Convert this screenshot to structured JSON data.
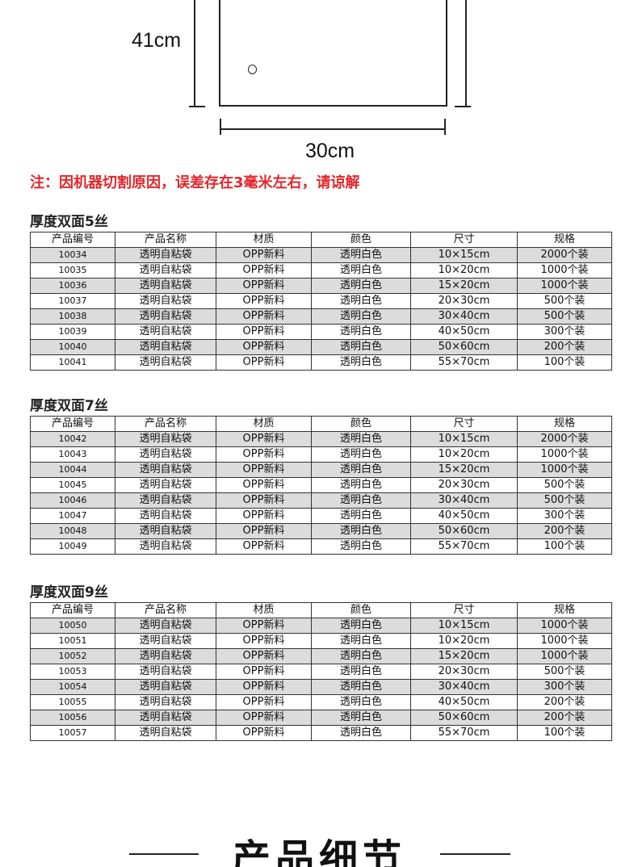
{
  "diagram": {
    "height_label": "41cm",
    "width_label": "30cm"
  },
  "note": "注：因机器切割原因，误差存在3毫米左右，请谅解",
  "columns": [
    "产品编号",
    "产品名称",
    "材质",
    "颜色",
    "尺寸",
    "规格"
  ],
  "tables": [
    {
      "title": "厚度双面5丝",
      "rows": [
        [
          "10034",
          "透明自粘袋",
          "OPP新料",
          "透明白色",
          "10×15cm",
          "2000个装"
        ],
        [
          "10035",
          "透明自粘袋",
          "OPP新料",
          "透明白色",
          "10×20cm",
          "1000个装"
        ],
        [
          "10036",
          "透明自粘袋",
          "OPP新料",
          "透明白色",
          "15×20cm",
          "1000个装"
        ],
        [
          "10037",
          "透明自粘袋",
          "OPP新料",
          "透明白色",
          "20×30cm",
          "500个装"
        ],
        [
          "10038",
          "透明自粘袋",
          "OPP新料",
          "透明白色",
          "30×40cm",
          "500个装"
        ],
        [
          "10039",
          "透明自粘袋",
          "OPP新料",
          "透明白色",
          "40×50cm",
          "300个装"
        ],
        [
          "10040",
          "透明自粘袋",
          "OPP新料",
          "透明白色",
          "50×60cm",
          "200个装"
        ],
        [
          "10041",
          "透明自粘袋",
          "OPP新料",
          "透明白色",
          "55×70cm",
          "100个装"
        ]
      ]
    },
    {
      "title": "厚度双面7丝",
      "rows": [
        [
          "10042",
          "透明自粘袋",
          "OPP新料",
          "透明白色",
          "10×15cm",
          "2000个装"
        ],
        [
          "10043",
          "透明自粘袋",
          "OPP新料",
          "透明白色",
          "10×20cm",
          "1000个装"
        ],
        [
          "10044",
          "透明自粘袋",
          "OPP新料",
          "透明白色",
          "15×20cm",
          "1000个装"
        ],
        [
          "10045",
          "透明自粘袋",
          "OPP新料",
          "透明白色",
          "20×30cm",
          "500个装"
        ],
        [
          "10046",
          "透明自粘袋",
          "OPP新料",
          "透明白色",
          "30×40cm",
          "500个装"
        ],
        [
          "10047",
          "透明自粘袋",
          "OPP新料",
          "透明白色",
          "40×50cm",
          "300个装"
        ],
        [
          "10048",
          "透明自粘袋",
          "OPP新料",
          "透明白色",
          "50×60cm",
          "200个装"
        ],
        [
          "10049",
          "透明自粘袋",
          "OPP新料",
          "透明白色",
          "55×70cm",
          "100个装"
        ]
      ]
    },
    {
      "title": "厚度双面9丝",
      "rows": [
        [
          "10050",
          "透明自粘袋",
          "OPP新料",
          "透明白色",
          "10×15cm",
          "1000个装"
        ],
        [
          "10051",
          "透明自粘袋",
          "OPP新料",
          "透明白色",
          "10×20cm",
          "1000个装"
        ],
        [
          "10052",
          "透明自粘袋",
          "OPP新料",
          "透明白色",
          "15×20cm",
          "1000个装"
        ],
        [
          "10053",
          "透明自粘袋",
          "OPP新料",
          "透明白色",
          "20×30cm",
          "500个装"
        ],
        [
          "10054",
          "透明自粘袋",
          "OPP新料",
          "透明白色",
          "30×40cm",
          "300个装"
        ],
        [
          "10055",
          "透明自粘袋",
          "OPP新料",
          "透明白色",
          "40×50cm",
          "200个装"
        ],
        [
          "10056",
          "透明自粘袋",
          "OPP新料",
          "透明白色",
          "50×60cm",
          "200个装"
        ],
        [
          "10057",
          "透明自粘袋",
          "OPP新料",
          "透明白色",
          "55×70cm",
          "100个装"
        ]
      ]
    }
  ],
  "bottom_title": "产品细节",
  "colors": {
    "note": "#e3262b",
    "alt_row": "#dcdcdc"
  }
}
